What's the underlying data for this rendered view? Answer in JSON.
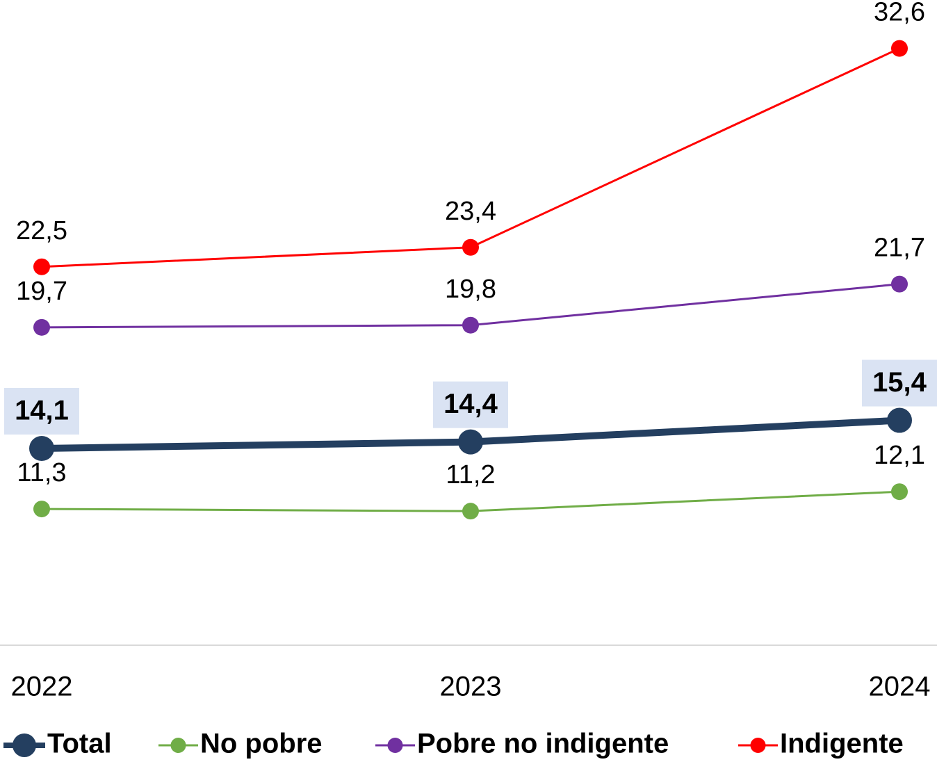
{
  "chart_data": {
    "type": "line",
    "categories": [
      "2022",
      "2023",
      "2024"
    ],
    "series": [
      {
        "name": "Total",
        "color": "#243f60",
        "values": [
          14.1,
          14.4,
          15.4
        ],
        "value_labels": [
          "14,1",
          "14,4",
          "15,4"
        ]
      },
      {
        "name": "No pobre",
        "color": "#70ad47",
        "values": [
          11.3,
          11.2,
          12.1
        ],
        "value_labels": [
          "11,3",
          "11,2",
          "12,1"
        ]
      },
      {
        "name": "Pobre no indigente",
        "color": "#7030a0",
        "values": [
          19.7,
          19.8,
          21.7
        ],
        "value_labels": [
          "19,7",
          "19,8",
          "21,7"
        ]
      },
      {
        "name": "Indigente",
        "color": "#ff0000",
        "values": [
          22.5,
          23.4,
          32.6
        ],
        "value_labels": [
          "22,5",
          "23,4",
          "32,6"
        ]
      }
    ],
    "ylim": [
      5,
      35
    ],
    "legend": "bottom"
  }
}
